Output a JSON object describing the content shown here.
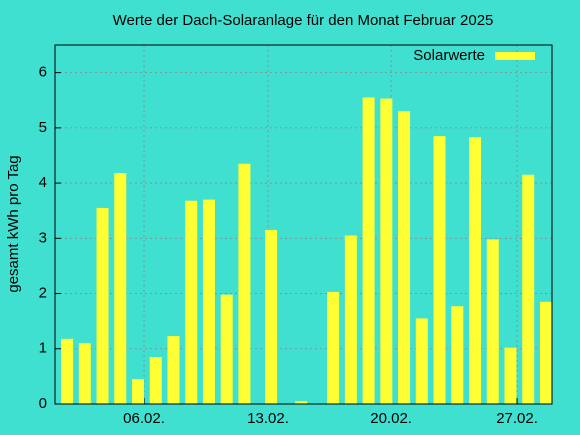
{
  "chart_data": {
    "type": "bar",
    "title": "Werte der Dach-Solaranlage für den Monat Februar 2025",
    "y_label": "gesamt kWh pro Tag",
    "x": [
      1,
      2,
      3,
      4,
      5,
      6,
      7,
      8,
      9,
      10,
      11,
      12.5,
      14.2,
      16,
      17,
      18,
      19,
      20,
      21,
      22,
      23,
      24,
      25,
      26,
      27,
      28
    ],
    "series": [
      {
        "name": "Solarwerte",
        "color": "#ffff33",
        "values": [
          1.18,
          1.1,
          3.55,
          4.18,
          0.45,
          0.85,
          1.23,
          3.68,
          3.7,
          1.98,
          4.35,
          3.15,
          0.05,
          2.03,
          3.05,
          5.55,
          5.53,
          5.3,
          1.55,
          4.85,
          1.77,
          4.83,
          2.98,
          1.02,
          4.15,
          1.85
        ]
      }
    ],
    "xlim": [
      0.32,
      28.34
    ],
    "xticks": [
      {
        "value": 5.34,
        "label": "06.02."
      },
      {
        "value": 12.33,
        "label": "13.02."
      },
      {
        "value": 19.27,
        "label": "20.02."
      },
      {
        "value": 26.37,
        "label": "27.02."
      }
    ],
    "ylim": [
      0,
      6.5
    ],
    "yticks": [
      0,
      1,
      2,
      3,
      4,
      5,
      6
    ],
    "grid": true,
    "legend": "top-right"
  }
}
